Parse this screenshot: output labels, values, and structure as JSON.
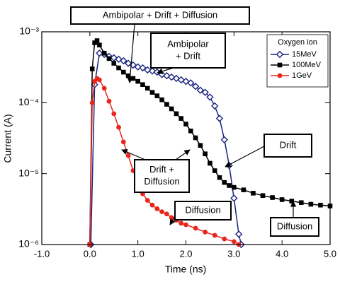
{
  "chart_data": {
    "type": "line",
    "xlabel": "Time (ns)",
    "ylabel": "Current (A)",
    "xlim": [
      -1,
      5
    ],
    "ylim": [
      1e-06,
      0.001
    ],
    "log_y": true,
    "grid": false,
    "xticks": [
      {
        "value": -1,
        "label": "-1.0"
      },
      {
        "value": 0,
        "label": "0.0"
      },
      {
        "value": 1,
        "label": "1.0"
      },
      {
        "value": 2,
        "label": "2.0"
      },
      {
        "value": 3,
        "label": "3.0"
      },
      {
        "value": 4,
        "label": "4.0"
      },
      {
        "value": 5,
        "label": "5.0"
      }
    ],
    "yticks": [
      {
        "value": 1e-06,
        "label": "10⁻⁶"
      },
      {
        "value": 1e-05,
        "label": "10⁻⁵"
      },
      {
        "value": 0.0001,
        "label": "10⁻⁴"
      },
      {
        "value": 0.001,
        "label": "10⁻³"
      }
    ],
    "legend_title": "Oxygen ion",
    "legend_position": "upper right",
    "series": [
      {
        "name": "15MeV",
        "color": "#1a237e",
        "marker": "diamond",
        "x": [
          0.02,
          0.1,
          0.2,
          0.3,
          0.4,
          0.5,
          0.6,
          0.7,
          0.8,
          0.9,
          1.0,
          1.1,
          1.2,
          1.3,
          1.4,
          1.5,
          1.6,
          1.7,
          1.8,
          1.9,
          2.0,
          2.1,
          2.2,
          2.3,
          2.4,
          2.5,
          2.6,
          2.7,
          2.8,
          2.9,
          3.0,
          3.1,
          3.15
        ],
        "values": [
          1e-06,
          0.00018,
          0.0005,
          0.00048,
          0.00045,
          0.00043,
          0.00041,
          0.00039,
          0.00036,
          0.00034,
          0.00032,
          0.00031,
          0.00029,
          0.00028,
          0.00027,
          0.00025,
          0.00024,
          0.00023,
          0.00022,
          0.00021,
          0.0002,
          0.00019,
          0.00017,
          0.00015,
          0.00014,
          0.00012,
          9e-05,
          6e-05,
          3e-05,
          1.3e-05,
          4.5e-06,
          1.4e-06,
          1e-06
        ]
      },
      {
        "name": "100MeV",
        "color": "#000000",
        "marker": "square",
        "x": [
          0,
          0.05,
          0.1,
          0.15,
          0.2,
          0.3,
          0.4,
          0.5,
          0.6,
          0.7,
          0.8,
          0.9,
          1.0,
          1.1,
          1.2,
          1.3,
          1.4,
          1.5,
          1.6,
          1.7,
          1.8,
          1.9,
          2.0,
          2.1,
          2.2,
          2.3,
          2.4,
          2.5,
          2.6,
          2.7,
          2.8,
          2.9,
          3.0,
          3.2,
          3.4,
          3.6,
          3.8,
          4.0,
          4.2,
          4.4,
          4.6,
          4.8,
          5.0
        ],
        "values": [
          1e-06,
          0.0003,
          0.0007,
          0.00075,
          0.00065,
          0.0005,
          0.00042,
          0.00036,
          0.00031,
          0.00027,
          0.00024,
          0.00022,
          0.0002,
          0.00018,
          0.00016,
          0.00014,
          0.000125,
          0.00011,
          9.5e-05,
          8.2e-05,
          7e-05,
          6e-05,
          5e-05,
          4e-05,
          3.2e-05,
          2.5e-05,
          1.9e-05,
          1.4e-05,
          1.1e-05,
          8.8e-06,
          7.5e-06,
          6.8e-06,
          6.4e-06,
          5.9e-06,
          5.3e-06,
          4.9e-06,
          4.6e-06,
          4.3e-06,
          4.1e-06,
          3.9e-06,
          3.7e-06,
          3.6e-06,
          3.5e-06
        ]
      },
      {
        "name": "1GeV",
        "color": "#e8261c",
        "marker": "circle",
        "x": [
          0,
          0.05,
          0.1,
          0.15,
          0.2,
          0.3,
          0.4,
          0.5,
          0.6,
          0.7,
          0.8,
          0.9,
          1.0,
          1.1,
          1.2,
          1.3,
          1.4,
          1.5,
          1.6,
          1.7,
          1.8,
          1.9,
          2.0,
          2.2,
          2.4,
          2.6,
          2.8,
          3.0,
          3.1
        ],
        "values": [
          1e-06,
          0.0001,
          0.0002,
          0.00022,
          0.00021,
          0.00016,
          0.000105,
          7e-05,
          4.5e-05,
          2.8e-05,
          1.8e-05,
          1.1e-05,
          7.5e-06,
          5.2e-06,
          4.2e-06,
          3.6e-06,
          3.2e-06,
          2.9e-06,
          2.7e-06,
          2.4e-06,
          2.2e-06,
          2e-06,
          1.9e-06,
          1.7e-06,
          1.5e-06,
          1.35e-06,
          1.2e-06,
          1.1e-06,
          1e-06
        ]
      }
    ],
    "annotations": [
      {
        "lines": [
          "Ambipolar + Drift + Diffusion"
        ]
      },
      {
        "lines": [
          "Ambipolar",
          "+ Drift"
        ]
      },
      {
        "lines": [
          "Drift"
        ]
      },
      {
        "lines": [
          "Drift +",
          "Diffusion"
        ]
      },
      {
        "lines": [
          "Diffusion"
        ]
      },
      {
        "lines": [
          "Diffusion"
        ]
      }
    ]
  }
}
